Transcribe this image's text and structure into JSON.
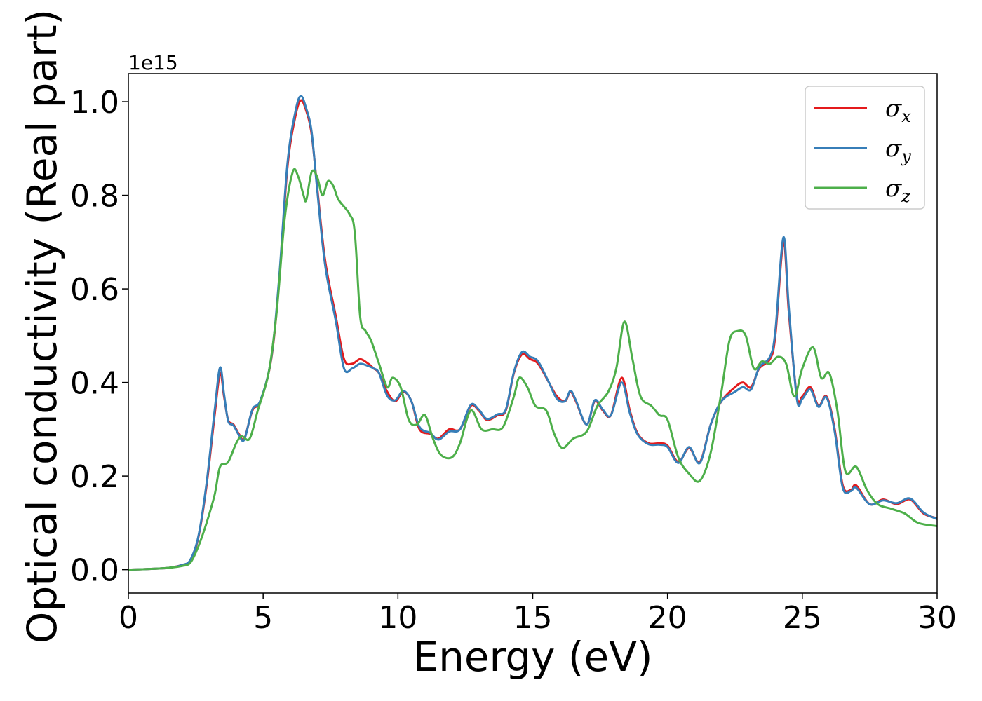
{
  "chart_data": {
    "type": "line",
    "xlabel": "Energy (eV)",
    "ylabel": "Optical conductivity (Real part)",
    "y_offset_label": "1e15",
    "xlim": [
      0,
      30
    ],
    "ylim": [
      -0.05,
      1.06
    ],
    "xticks": [
      0,
      5,
      10,
      15,
      20,
      25,
      30
    ],
    "yticks": [
      0.0,
      0.2,
      0.4,
      0.6,
      0.8,
      1.0
    ],
    "xtick_labels": [
      "0",
      "5",
      "10",
      "15",
      "20",
      "25",
      "30"
    ],
    "ytick_labels": [
      "0.0",
      "0.2",
      "0.4",
      "0.6",
      "0.8",
      "1.0"
    ],
    "grid": false,
    "legend_position": "top-right",
    "series": [
      {
        "name": "σx",
        "legend_symbol": "σ",
        "legend_sub": "x",
        "color": "#e41a1c",
        "points": [
          [
            0,
            0
          ],
          [
            1,
            0.002
          ],
          [
            1.5,
            0.004
          ],
          [
            2,
            0.01
          ],
          [
            2.3,
            0.02
          ],
          [
            2.6,
            0.07
          ],
          [
            2.9,
            0.18
          ],
          [
            3.2,
            0.33
          ],
          [
            3.4,
            0.42
          ],
          [
            3.55,
            0.37
          ],
          [
            3.7,
            0.32
          ],
          [
            3.9,
            0.31
          ],
          [
            4.1,
            0.29
          ],
          [
            4.3,
            0.28
          ],
          [
            4.6,
            0.34
          ],
          [
            4.9,
            0.36
          ],
          [
            5.3,
            0.45
          ],
          [
            5.6,
            0.62
          ],
          [
            5.9,
            0.86
          ],
          [
            6.2,
            0.97
          ],
          [
            6.4,
            1.003
          ],
          [
            6.6,
            0.98
          ],
          [
            6.8,
            0.93
          ],
          [
            7.0,
            0.82
          ],
          [
            7.3,
            0.66
          ],
          [
            7.7,
            0.54
          ],
          [
            8.0,
            0.45
          ],
          [
            8.3,
            0.44
          ],
          [
            8.6,
            0.45
          ],
          [
            8.9,
            0.44
          ],
          [
            9.1,
            0.43
          ],
          [
            9.3,
            0.42
          ],
          [
            9.6,
            0.38
          ],
          [
            9.9,
            0.36
          ],
          [
            10.2,
            0.38
          ],
          [
            10.5,
            0.36
          ],
          [
            10.8,
            0.3
          ],
          [
            11.2,
            0.29
          ],
          [
            11.5,
            0.28
          ],
          [
            11.9,
            0.3
          ],
          [
            12.3,
            0.3
          ],
          [
            12.7,
            0.35
          ],
          [
            13.0,
            0.34
          ],
          [
            13.3,
            0.32
          ],
          [
            13.7,
            0.33
          ],
          [
            14.0,
            0.34
          ],
          [
            14.3,
            0.42
          ],
          [
            14.6,
            0.46
          ],
          [
            14.9,
            0.45
          ],
          [
            15.2,
            0.44
          ],
          [
            15.6,
            0.4
          ],
          [
            15.9,
            0.37
          ],
          [
            16.2,
            0.36
          ],
          [
            16.4,
            0.38
          ],
          [
            16.6,
            0.36
          ],
          [
            17.0,
            0.31
          ],
          [
            17.3,
            0.36
          ],
          [
            17.6,
            0.34
          ],
          [
            17.9,
            0.33
          ],
          [
            18.3,
            0.41
          ],
          [
            18.6,
            0.34
          ],
          [
            18.9,
            0.29
          ],
          [
            19.3,
            0.27
          ],
          [
            19.7,
            0.27
          ],
          [
            20.0,
            0.265
          ],
          [
            20.4,
            0.23
          ],
          [
            20.8,
            0.26
          ],
          [
            21.2,
            0.23
          ],
          [
            21.6,
            0.31
          ],
          [
            22.0,
            0.36
          ],
          [
            22.5,
            0.39
          ],
          [
            22.8,
            0.4
          ],
          [
            23.1,
            0.39
          ],
          [
            23.4,
            0.43
          ],
          [
            23.8,
            0.45
          ],
          [
            24.0,
            0.5
          ],
          [
            24.3,
            0.7
          ],
          [
            24.5,
            0.55
          ],
          [
            24.8,
            0.37
          ],
          [
            25.0,
            0.37
          ],
          [
            25.3,
            0.39
          ],
          [
            25.6,
            0.35
          ],
          [
            25.9,
            0.37
          ],
          [
            26.2,
            0.3
          ],
          [
            26.5,
            0.18
          ],
          [
            26.8,
            0.17
          ],
          [
            27.0,
            0.18
          ],
          [
            27.5,
            0.14
          ],
          [
            28.0,
            0.15
          ],
          [
            28.5,
            0.14
          ],
          [
            29.0,
            0.15
          ],
          [
            29.5,
            0.12
          ],
          [
            30.0,
            0.11
          ]
        ]
      },
      {
        "name": "σy",
        "legend_symbol": "σ",
        "legend_sub": "y",
        "color": "#377eb8",
        "points": [
          [
            0,
            0
          ],
          [
            1,
            0.002
          ],
          [
            1.5,
            0.004
          ],
          [
            2,
            0.01
          ],
          [
            2.3,
            0.021
          ],
          [
            2.6,
            0.072
          ],
          [
            2.9,
            0.185
          ],
          [
            3.2,
            0.34
          ],
          [
            3.4,
            0.432
          ],
          [
            3.55,
            0.375
          ],
          [
            3.7,
            0.318
          ],
          [
            3.9,
            0.308
          ],
          [
            4.1,
            0.288
          ],
          [
            4.3,
            0.278
          ],
          [
            4.6,
            0.342
          ],
          [
            4.9,
            0.362
          ],
          [
            5.3,
            0.452
          ],
          [
            5.6,
            0.628
          ],
          [
            5.9,
            0.868
          ],
          [
            6.2,
            0.98
          ],
          [
            6.4,
            1.012
          ],
          [
            6.6,
            0.985
          ],
          [
            6.8,
            0.935
          ],
          [
            7.0,
            0.815
          ],
          [
            7.3,
            0.65
          ],
          [
            7.7,
            0.53
          ],
          [
            8.0,
            0.43
          ],
          [
            8.3,
            0.43
          ],
          [
            8.6,
            0.44
          ],
          [
            8.9,
            0.435
          ],
          [
            9.1,
            0.43
          ],
          [
            9.3,
            0.42
          ],
          [
            9.6,
            0.372
          ],
          [
            9.9,
            0.362
          ],
          [
            10.2,
            0.382
          ],
          [
            10.5,
            0.36
          ],
          [
            10.8,
            0.305
          ],
          [
            11.2,
            0.292
          ],
          [
            11.5,
            0.278
          ],
          [
            11.9,
            0.295
          ],
          [
            12.3,
            0.3
          ],
          [
            12.7,
            0.352
          ],
          [
            13.0,
            0.342
          ],
          [
            13.3,
            0.322
          ],
          [
            13.7,
            0.332
          ],
          [
            14.0,
            0.342
          ],
          [
            14.3,
            0.422
          ],
          [
            14.6,
            0.465
          ],
          [
            14.9,
            0.455
          ],
          [
            15.2,
            0.445
          ],
          [
            15.6,
            0.4
          ],
          [
            15.9,
            0.365
          ],
          [
            16.2,
            0.36
          ],
          [
            16.4,
            0.382
          ],
          [
            16.6,
            0.362
          ],
          [
            17.0,
            0.31
          ],
          [
            17.3,
            0.362
          ],
          [
            17.6,
            0.342
          ],
          [
            17.9,
            0.33
          ],
          [
            18.3,
            0.4
          ],
          [
            18.6,
            0.335
          ],
          [
            18.9,
            0.288
          ],
          [
            19.3,
            0.268
          ],
          [
            19.7,
            0.267
          ],
          [
            20.0,
            0.262
          ],
          [
            20.4,
            0.228
          ],
          [
            20.8,
            0.262
          ],
          [
            21.2,
            0.228
          ],
          [
            21.6,
            0.31
          ],
          [
            22.0,
            0.36
          ],
          [
            22.5,
            0.38
          ],
          [
            22.8,
            0.39
          ],
          [
            23.1,
            0.385
          ],
          [
            23.4,
            0.432
          ],
          [
            23.8,
            0.455
          ],
          [
            24.0,
            0.51
          ],
          [
            24.3,
            0.71
          ],
          [
            24.5,
            0.56
          ],
          [
            24.8,
            0.365
          ],
          [
            25.0,
            0.365
          ],
          [
            25.3,
            0.385
          ],
          [
            25.6,
            0.348
          ],
          [
            25.9,
            0.368
          ],
          [
            26.2,
            0.295
          ],
          [
            26.5,
            0.175
          ],
          [
            26.8,
            0.168
          ],
          [
            27.0,
            0.175
          ],
          [
            27.5,
            0.14
          ],
          [
            28.0,
            0.148
          ],
          [
            28.5,
            0.142
          ],
          [
            29.0,
            0.152
          ],
          [
            29.5,
            0.122
          ],
          [
            30.0,
            0.108
          ]
        ]
      },
      {
        "name": "σz",
        "legend_symbol": "σ",
        "legend_sub": "z",
        "color": "#4daf4a",
        "points": [
          [
            0,
            0
          ],
          [
            1,
            0.002
          ],
          [
            1.5,
            0.004
          ],
          [
            2,
            0.008
          ],
          [
            2.3,
            0.015
          ],
          [
            2.6,
            0.05
          ],
          [
            2.9,
            0.1
          ],
          [
            3.2,
            0.16
          ],
          [
            3.4,
            0.22
          ],
          [
            3.7,
            0.23
          ],
          [
            4.0,
            0.27
          ],
          [
            4.2,
            0.285
          ],
          [
            4.5,
            0.28
          ],
          [
            4.8,
            0.34
          ],
          [
            5.2,
            0.42
          ],
          [
            5.5,
            0.55
          ],
          [
            5.8,
            0.75
          ],
          [
            6.1,
            0.85
          ],
          [
            6.3,
            0.84
          ],
          [
            6.5,
            0.8
          ],
          [
            6.6,
            0.79
          ],
          [
            6.8,
            0.85
          ],
          [
            7.0,
            0.84
          ],
          [
            7.2,
            0.8
          ],
          [
            7.4,
            0.83
          ],
          [
            7.6,
            0.82
          ],
          [
            7.8,
            0.79
          ],
          [
            8.2,
            0.76
          ],
          [
            8.4,
            0.72
          ],
          [
            8.6,
            0.54
          ],
          [
            8.8,
            0.51
          ],
          [
            9.0,
            0.49
          ],
          [
            9.3,
            0.44
          ],
          [
            9.6,
            0.39
          ],
          [
            9.8,
            0.41
          ],
          [
            10.1,
            0.39
          ],
          [
            10.4,
            0.32
          ],
          [
            10.7,
            0.31
          ],
          [
            11.0,
            0.33
          ],
          [
            11.3,
            0.28
          ],
          [
            11.6,
            0.245
          ],
          [
            12.0,
            0.24
          ],
          [
            12.3,
            0.27
          ],
          [
            12.7,
            0.34
          ],
          [
            13.1,
            0.3
          ],
          [
            13.5,
            0.3
          ],
          [
            13.9,
            0.305
          ],
          [
            14.3,
            0.37
          ],
          [
            14.5,
            0.41
          ],
          [
            14.8,
            0.39
          ],
          [
            15.1,
            0.35
          ],
          [
            15.5,
            0.34
          ],
          [
            15.8,
            0.29
          ],
          [
            16.1,
            0.26
          ],
          [
            16.5,
            0.28
          ],
          [
            17.0,
            0.295
          ],
          [
            17.4,
            0.35
          ],
          [
            17.8,
            0.38
          ],
          [
            18.1,
            0.43
          ],
          [
            18.4,
            0.53
          ],
          [
            18.7,
            0.45
          ],
          [
            19.0,
            0.37
          ],
          [
            19.4,
            0.35
          ],
          [
            19.7,
            0.33
          ],
          [
            20.0,
            0.32
          ],
          [
            20.4,
            0.24
          ],
          [
            20.8,
            0.205
          ],
          [
            21.2,
            0.19
          ],
          [
            21.6,
            0.25
          ],
          [
            22.0,
            0.38
          ],
          [
            22.3,
            0.49
          ],
          [
            22.6,
            0.51
          ],
          [
            22.9,
            0.5
          ],
          [
            23.2,
            0.43
          ],
          [
            23.5,
            0.445
          ],
          [
            23.8,
            0.44
          ],
          [
            24.1,
            0.455
          ],
          [
            24.4,
            0.44
          ],
          [
            24.7,
            0.37
          ],
          [
            25.0,
            0.43
          ],
          [
            25.4,
            0.475
          ],
          [
            25.7,
            0.41
          ],
          [
            26.0,
            0.42
          ],
          [
            26.3,
            0.34
          ],
          [
            26.6,
            0.21
          ],
          [
            27.0,
            0.22
          ],
          [
            27.4,
            0.17
          ],
          [
            27.8,
            0.14
          ],
          [
            28.3,
            0.13
          ],
          [
            28.8,
            0.12
          ],
          [
            29.3,
            0.1
          ],
          [
            30.0,
            0.093
          ]
        ]
      }
    ]
  }
}
